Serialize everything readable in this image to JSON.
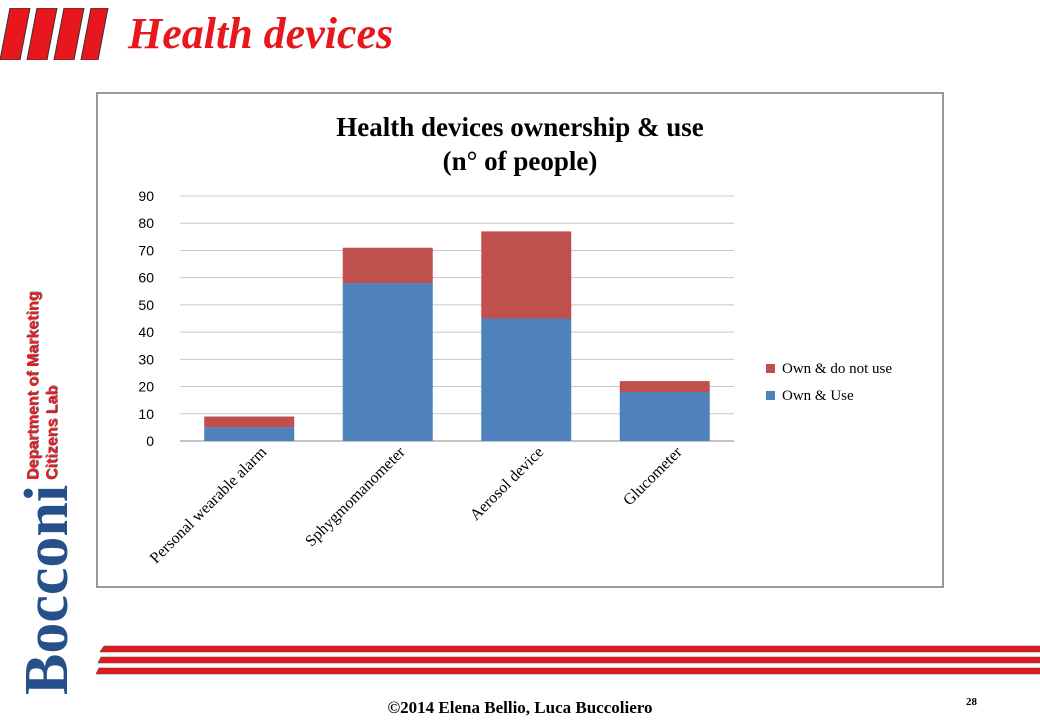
{
  "slide": {
    "title": "Health devices",
    "dept_line1": "Department of Marketing",
    "dept_line2": "Citizens Lab",
    "university": "Bocconi",
    "footer": "©2014  Elena Bellio, Luca Buccoliero",
    "page_number": "28"
  },
  "colors": {
    "accent_red": "#e8171e",
    "brand_blue": "#26508a",
    "series_own_use": "#4f81bd",
    "series_own_not_use": "#c0504d"
  },
  "chart_data": {
    "type": "bar",
    "stacked": true,
    "title_line1": "Health devices ownership & use",
    "title_line2": "(n° of people)",
    "categories": [
      "Personal wearable alarm",
      "Sphygmomanometer",
      "Aerosol device",
      "Glucometer"
    ],
    "series": [
      {
        "name": "Own & Use",
        "values": [
          5,
          58,
          45,
          18
        ]
      },
      {
        "name": "Own & do not use",
        "values": [
          4,
          13,
          32,
          4
        ]
      }
    ],
    "ylim": [
      0,
      90
    ],
    "yticks": [
      "0",
      "10",
      "20",
      "30",
      "40",
      "50",
      "60",
      "70",
      "80",
      "90"
    ],
    "grid": true,
    "legend": "right"
  }
}
